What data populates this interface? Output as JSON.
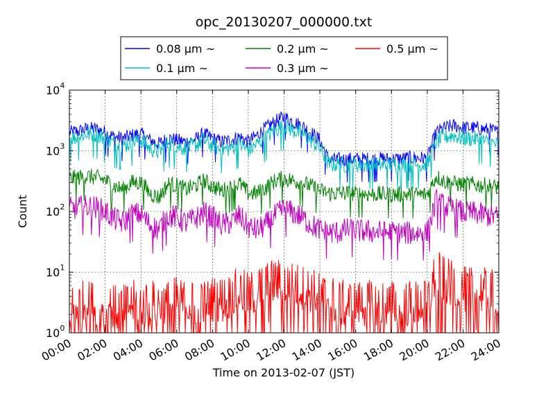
{
  "chart_data": {
    "type": "line",
    "title": "opc_20130207_000000.txt",
    "xlabel": "Time on 2013-02-07 (JST)",
    "ylabel": "Count",
    "yscale": "log",
    "ylim": [
      1,
      10000
    ],
    "xlim": [
      "00:00",
      "24:00"
    ],
    "x_ticks": [
      "00:00",
      "02:00",
      "04:00",
      "06:00",
      "08:00",
      "10:00",
      "12:00",
      "14:00",
      "16:00",
      "18:00",
      "20:00",
      "22:00",
      "24:00"
    ],
    "y_ticks": [
      {
        "base": "10",
        "exp": "0"
      },
      {
        "base": "10",
        "exp": "1"
      },
      {
        "base": "10",
        "exp": "2"
      },
      {
        "base": "10",
        "exp": "3"
      },
      {
        "base": "10",
        "exp": "4"
      }
    ],
    "grid": true,
    "legend_position": "top-center",
    "legend_columns": 3,
    "x_hours": [
      0,
      0.5,
      1,
      1.5,
      2,
      2.5,
      3,
      3.5,
      4,
      4.5,
      5,
      5.5,
      6,
      6.5,
      7,
      7.5,
      8,
      8.5,
      9,
      9.5,
      10,
      10.5,
      11,
      11.5,
      12,
      12.5,
      13,
      13.5,
      14,
      14.5,
      15,
      15.5,
      16,
      16.5,
      17,
      17.5,
      18,
      18.5,
      19,
      19.5,
      20,
      20.5,
      21,
      21.5,
      22,
      22.5,
      23,
      23.5,
      24
    ],
    "series": [
      {
        "name": "0.08 μm ~",
        "color": "#0000ff",
        "noise": 0.12,
        "values": [
          2000,
          2100,
          2300,
          2300,
          2000,
          1700,
          1600,
          1800,
          1900,
          1500,
          1300,
          1600,
          1500,
          1400,
          1500,
          1900,
          1600,
          1400,
          1500,
          1700,
          1400,
          1800,
          2400,
          3000,
          3600,
          3000,
          2600,
          2000,
          1500,
          700,
          720,
          720,
          730,
          730,
          730,
          740,
          730,
          740,
          760,
          760,
          750,
          2000,
          2400,
          2600,
          2400,
          2400,
          2300,
          2200,
          2000
        ]
      },
      {
        "name": "0.1 μm ~",
        "color": "#00bfbf",
        "noise": 0.14,
        "values": [
          1600,
          1700,
          1900,
          1850,
          1600,
          1300,
          1200,
          1400,
          1500,
          1100,
          950,
          1300,
          1200,
          1100,
          1200,
          1500,
          1200,
          1050,
          1100,
          1300,
          1000,
          1300,
          1700,
          2200,
          2600,
          2200,
          1900,
          1500,
          1100,
          600,
          600,
          590,
          590,
          585,
          585,
          585,
          585,
          590,
          590,
          590,
          590,
          1400,
          1700,
          1800,
          1600,
          1600,
          1500,
          1350,
          1250
        ]
      },
      {
        "name": "0.2 μm ~",
        "color": "#008000",
        "noise": 0.14,
        "values": [
          350,
          360,
          380,
          360,
          330,
          260,
          230,
          300,
          300,
          200,
          170,
          280,
          270,
          230,
          260,
          320,
          260,
          220,
          240,
          290,
          200,
          200,
          250,
          320,
          350,
          320,
          300,
          260,
          220,
          200,
          200,
          200,
          195,
          195,
          192,
          190,
          190,
          190,
          190,
          190,
          190,
          380,
          310,
          290,
          280,
          280,
          270,
          260,
          250
        ]
      },
      {
        "name": "0.3 μm ~",
        "color": "#bf00bf",
        "noise": 0.2,
        "values": [
          110,
          115,
          120,
          115,
          100,
          75,
          65,
          90,
          90,
          60,
          50,
          85,
          80,
          65,
          75,
          95,
          80,
          60,
          65,
          85,
          55,
          50,
          60,
          85,
          110,
          95,
          80,
          60,
          50,
          45,
          45,
          50,
          48,
          47,
          46,
          45,
          45,
          44,
          44,
          44,
          44,
          150,
          120,
          110,
          95,
          95,
          90,
          85,
          80
        ]
      },
      {
        "name": "0.5 μm ~",
        "color": "#ff0000",
        "noise": 0.4,
        "values": [
          2.5,
          3,
          3,
          3,
          3,
          2.5,
          2.5,
          3,
          3,
          3,
          3,
          3,
          3.5,
          3,
          3,
          3,
          3.5,
          3.5,
          4,
          5,
          4,
          5,
          6,
          7,
          6.5,
          6,
          5.5,
          5,
          4,
          4,
          3,
          3,
          3,
          3,
          3,
          3,
          3,
          3,
          3,
          3,
          3,
          10,
          7,
          6,
          5,
          5,
          5,
          4.5,
          4.5
        ]
      }
    ]
  }
}
